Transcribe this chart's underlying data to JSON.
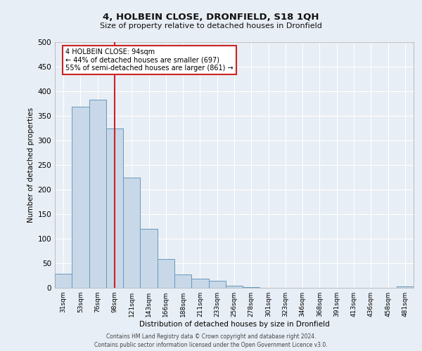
{
  "title": "4, HOLBEIN CLOSE, DRONFIELD, S18 1QH",
  "subtitle": "Size of property relative to detached houses in Dronfield",
  "xlabel": "Distribution of detached houses by size in Dronfield",
  "ylabel": "Number of detached properties",
  "bar_color": "#c8d8e8",
  "bar_edge_color": "#6699bb",
  "background_color": "#e8eef5",
  "grid_color": "#ffffff",
  "bin_labels": [
    "31sqm",
    "53sqm",
    "76sqm",
    "98sqm",
    "121sqm",
    "143sqm",
    "166sqm",
    "188sqm",
    "211sqm",
    "233sqm",
    "256sqm",
    "278sqm",
    "301sqm",
    "323sqm",
    "346sqm",
    "368sqm",
    "391sqm",
    "413sqm",
    "436sqm",
    "458sqm",
    "481sqm"
  ],
  "bar_heights": [
    28,
    369,
    383,
    325,
    224,
    120,
    58,
    27,
    18,
    15,
    5,
    1,
    0,
    0,
    0,
    0,
    0,
    0,
    0,
    0,
    3
  ],
  "vline_x": 3,
  "vline_color": "#cc2222",
  "annotation_title": "4 HOLBEIN CLOSE: 94sqm",
  "annotation_line1": "← 44% of detached houses are smaller (697)",
  "annotation_line2": "55% of semi-detached houses are larger (861) →",
  "annotation_box_color": "#ffffff",
  "annotation_box_edge_color": "#cc2222",
  "ylim": [
    0,
    500
  ],
  "yticks": [
    0,
    50,
    100,
    150,
    200,
    250,
    300,
    350,
    400,
    450,
    500
  ],
  "footer1": "Contains HM Land Registry data © Crown copyright and database right 2024.",
  "footer2": "Contains public sector information licensed under the Open Government Licence v3.0."
}
